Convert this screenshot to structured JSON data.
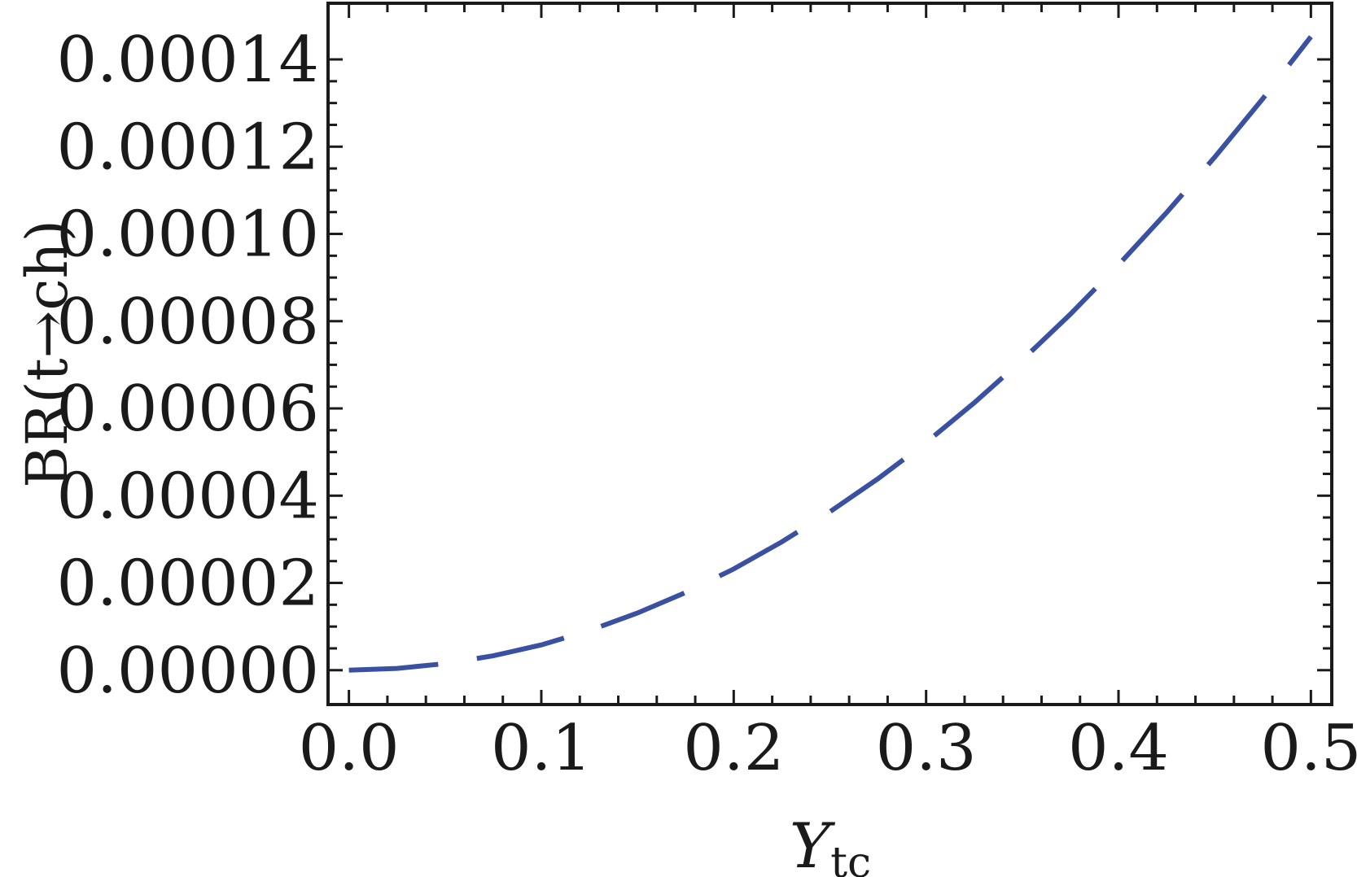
{
  "chart_data": {
    "type": "line",
    "title": "",
    "xlabel_main": "Y",
    "xlabel_sub": "tc",
    "ylabel": "BR(t→ch)",
    "xlim": [
      -0.01,
      0.51
    ],
    "ylim": [
      -7.5e-06,
      0.0001525
    ],
    "x_ticks": [
      "0.0",
      "0.1",
      "0.2",
      "0.3",
      "0.4",
      "0.5"
    ],
    "y_ticks": [
      "0.00000",
      "0.00002",
      "0.00004",
      "0.00006",
      "0.00008",
      "0.00010",
      "0.00012",
      "0.00014"
    ],
    "grid": false,
    "line_style": "dashed",
    "series": [
      {
        "color": "#3a50a0",
        "x": [
          0,
          0.025,
          0.05,
          0.075,
          0.1,
          0.125,
          0.15,
          0.175,
          0.2,
          0.225,
          0.25,
          0.275,
          0.3,
          0.325,
          0.35,
          0.375,
          0.4,
          0.425,
          0.45,
          0.475,
          0.5
        ],
        "y": [
          0,
          4e-07,
          1.5e-06,
          3.3e-06,
          5.8e-06,
          9.1e-06,
          1.31e-05,
          1.78e-05,
          2.32e-05,
          2.94e-05,
          3.63e-05,
          4.39e-05,
          5.22e-05,
          6.13e-05,
          7.11e-05,
          8.16e-05,
          9.29e-05,
          0.0001049,
          0.0001176,
          0.000131,
          0.0001452
        ]
      }
    ]
  }
}
